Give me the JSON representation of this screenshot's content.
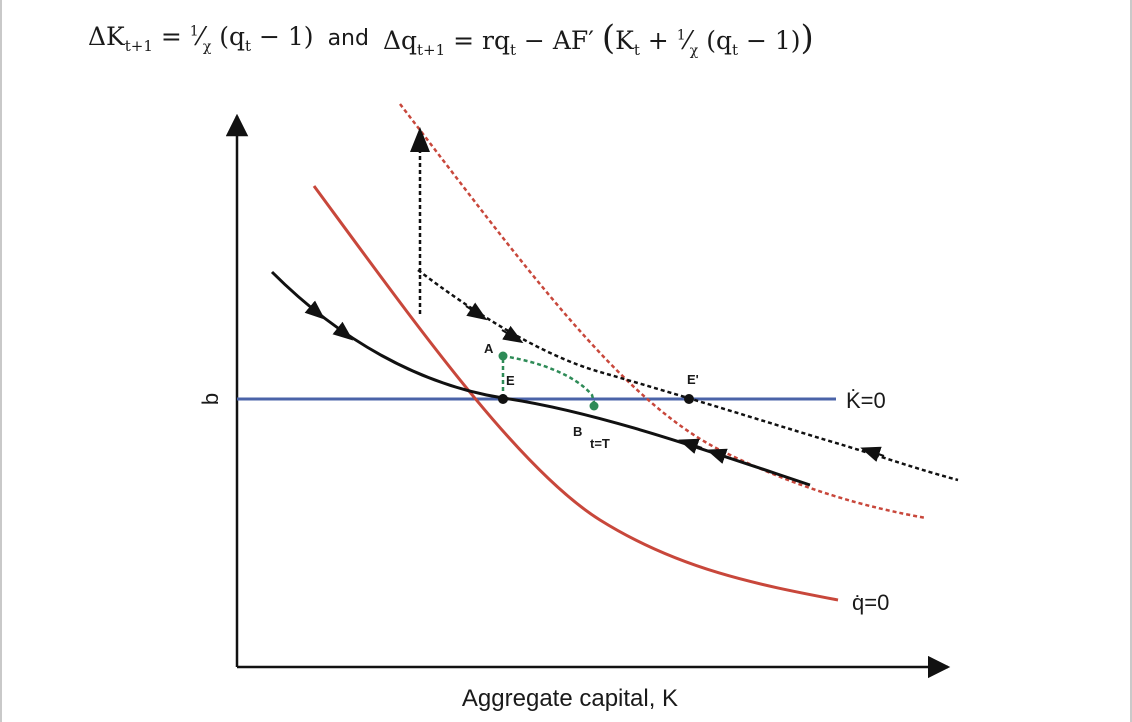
{
  "equation": {
    "left": "ΔK_{t+1} = (1/χ)(q_t − 1)",
    "connector": "and",
    "right": "Δq_{t+1} = rq_t − AF′(K_t + (1/χ)(q_t − 1))"
  },
  "axes": {
    "x_label": "Aggregate capital, K",
    "y_label": "q"
  },
  "curves": {
    "k_dot_label": "K̇=0",
    "q_dot_label": "q̇=0"
  },
  "points": {
    "A": "A",
    "E": "E",
    "E_prime": "E'",
    "B": "B",
    "t_eq_T": "t=T"
  },
  "colors": {
    "k_dot_line": "#4a63a8",
    "q_dot_curve": "#c8473b",
    "saddle_path": "#111111",
    "transition_path": "#2e8b57"
  }
}
